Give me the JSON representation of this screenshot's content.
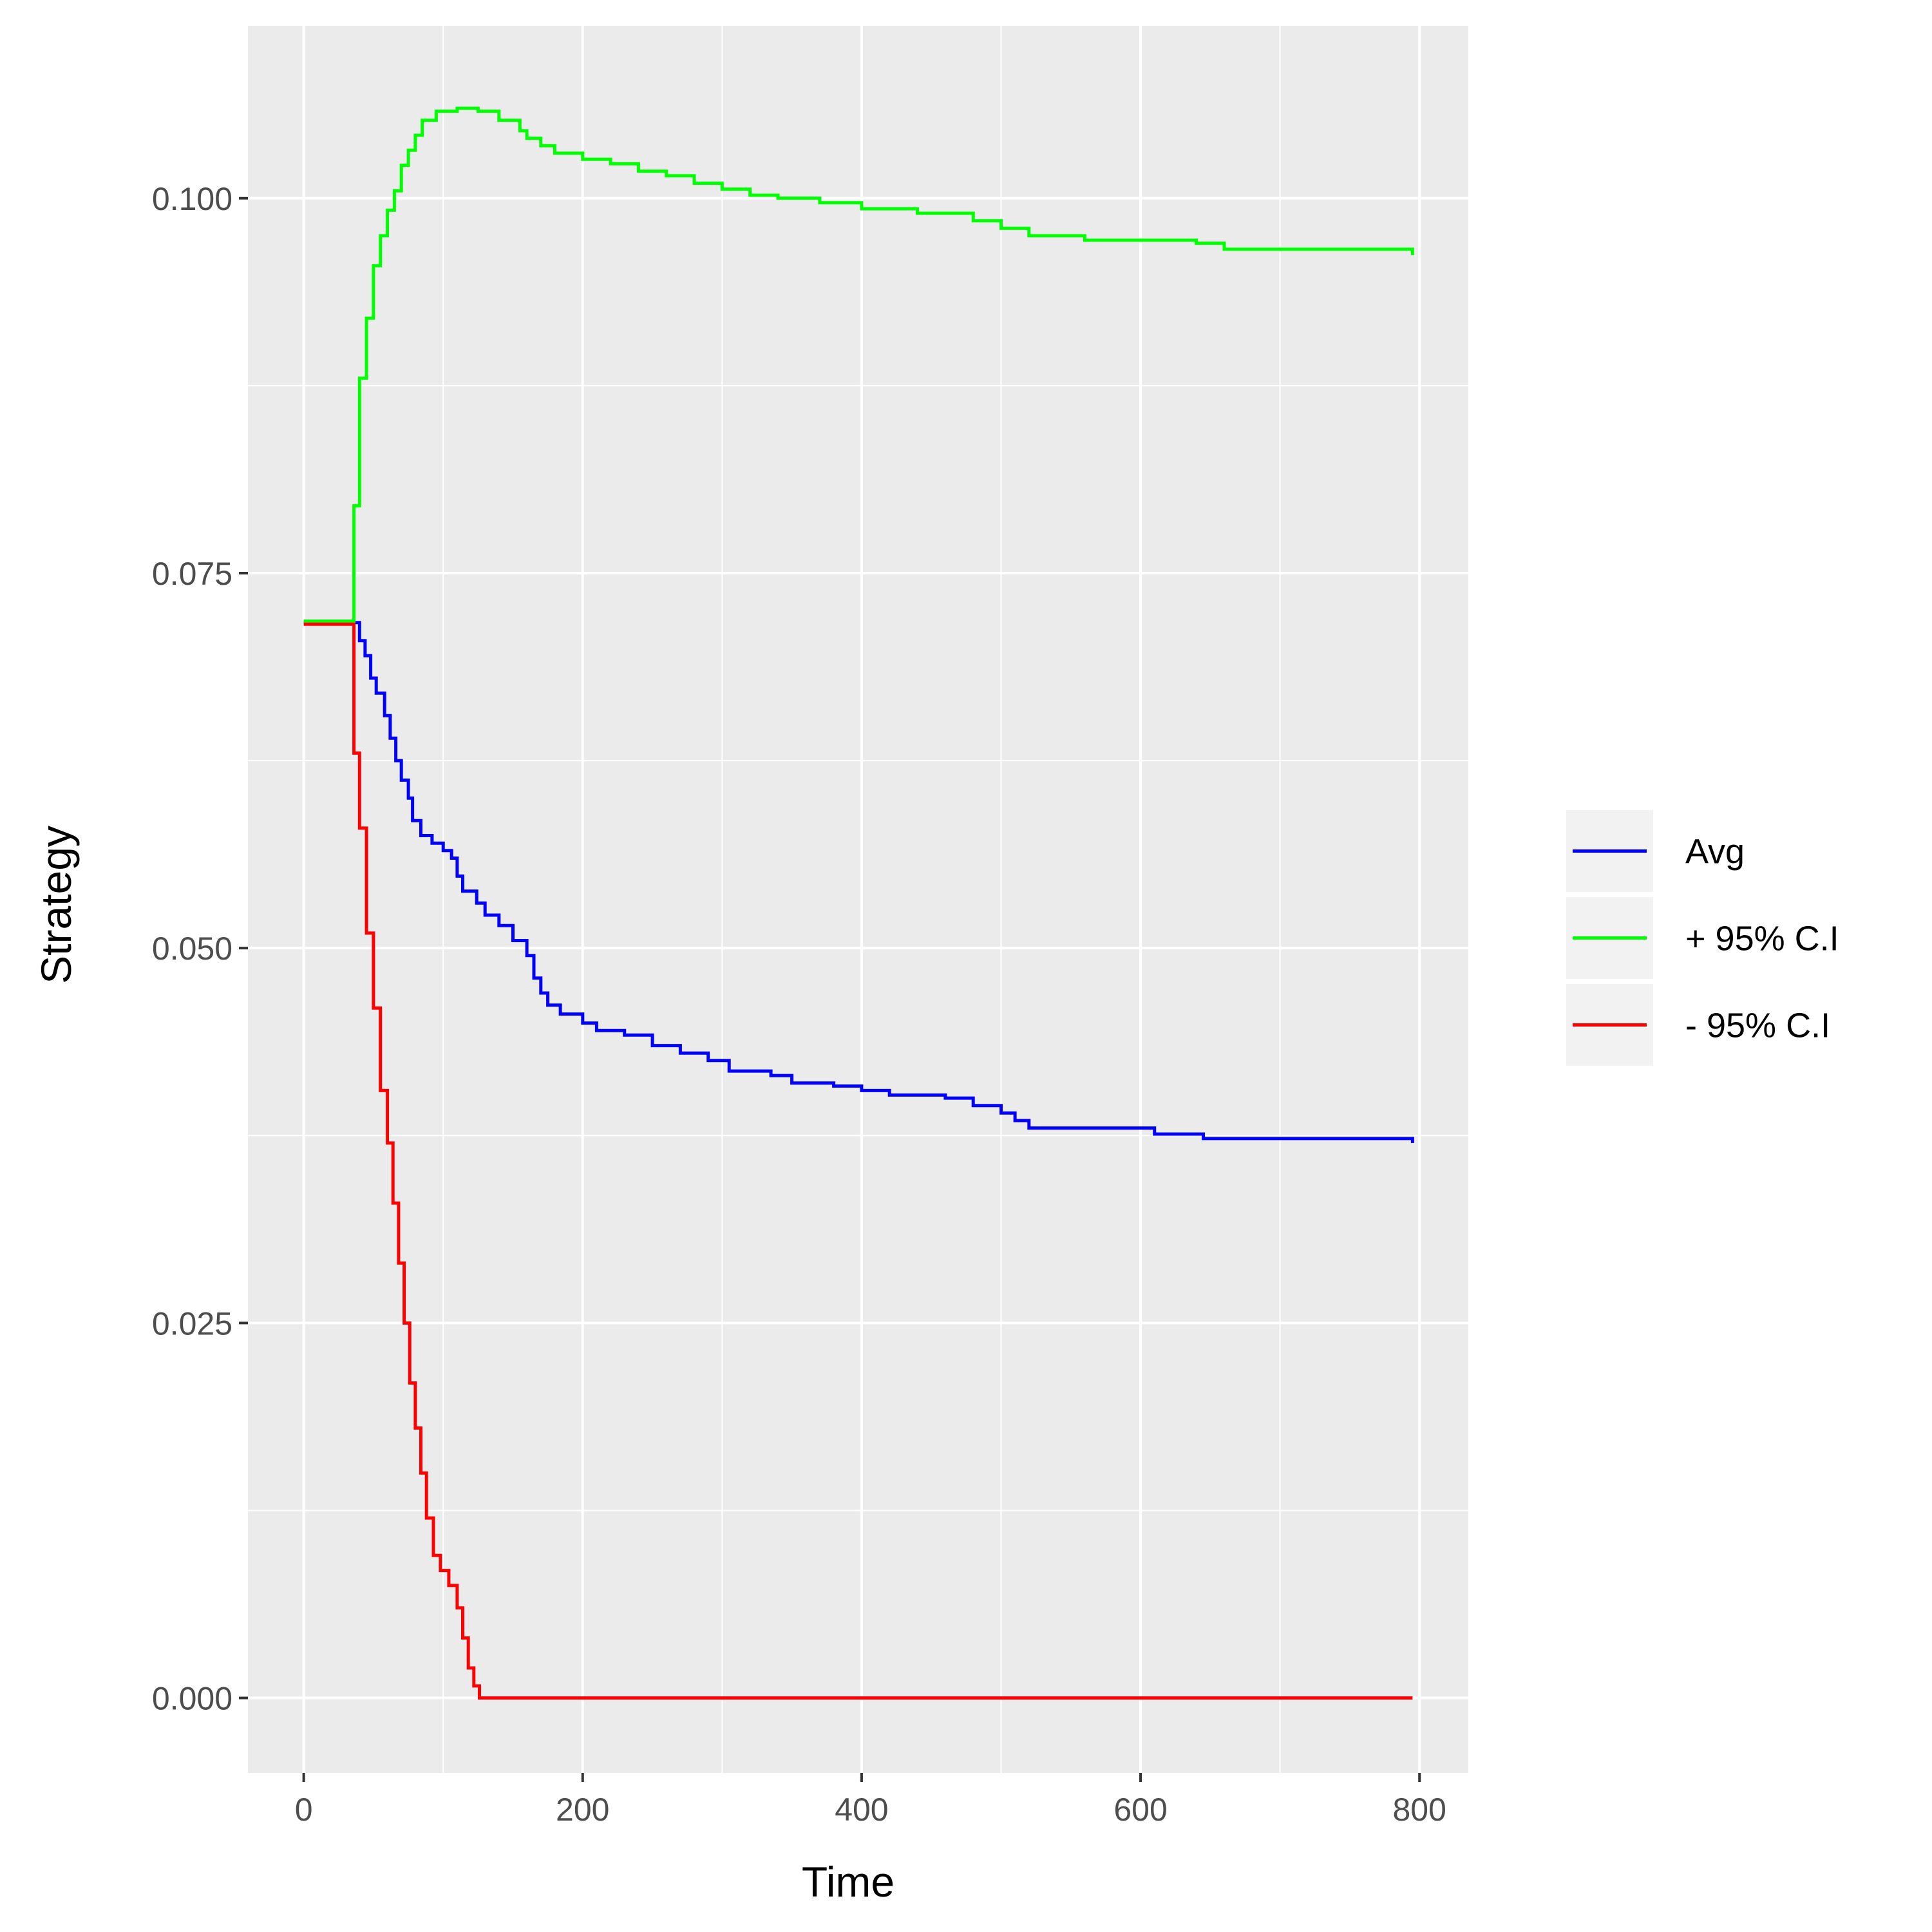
{
  "chart_data": {
    "type": "line",
    "xlabel": "Time",
    "ylabel": "Strategy",
    "xlim": [
      -40,
      835
    ],
    "ylim": [
      -0.005,
      0.1115
    ],
    "x_ticks": [
      0,
      200,
      400,
      600,
      800
    ],
    "x_tick_labels": [
      "0",
      "200",
      "400",
      "600",
      "800"
    ],
    "y_ticks": [
      0.0,
      0.025,
      0.05,
      0.075,
      0.1
    ],
    "y_tick_labels": [
      "0.000",
      "0.025",
      "0.050",
      "0.075",
      "0.100"
    ],
    "grid": true,
    "legend_position": "right",
    "series": [
      {
        "name": "Avg",
        "color": "#0000ff",
        "points": [
          [
            0,
            0.0717
          ],
          [
            34,
            0.0717
          ],
          [
            40,
            0.0705
          ],
          [
            44,
            0.0695
          ],
          [
            48,
            0.068
          ],
          [
            52,
            0.067
          ],
          [
            58,
            0.0655
          ],
          [
            62,
            0.064
          ],
          [
            66,
            0.0625
          ],
          [
            70,
            0.0612
          ],
          [
            75,
            0.06
          ],
          [
            78,
            0.0585
          ],
          [
            84,
            0.0575
          ],
          [
            92,
            0.057
          ],
          [
            100,
            0.0565
          ],
          [
            106,
            0.056
          ],
          [
            110,
            0.0548
          ],
          [
            114,
            0.0538
          ],
          [
            124,
            0.053
          ],
          [
            130,
            0.0522
          ],
          [
            140,
            0.0515
          ],
          [
            150,
            0.0505
          ],
          [
            160,
            0.0495
          ],
          [
            165,
            0.048
          ],
          [
            170,
            0.047
          ],
          [
            175,
            0.0462
          ],
          [
            184,
            0.0456
          ],
          [
            200,
            0.045
          ],
          [
            210,
            0.0445
          ],
          [
            230,
            0.0442
          ],
          [
            250,
            0.0435
          ],
          [
            270,
            0.043
          ],
          [
            290,
            0.0425
          ],
          [
            305,
            0.0418
          ],
          [
            335,
            0.0415
          ],
          [
            350,
            0.041
          ],
          [
            380,
            0.0408
          ],
          [
            400,
            0.0405
          ],
          [
            420,
            0.0402
          ],
          [
            460,
            0.04
          ],
          [
            480,
            0.0395
          ],
          [
            500,
            0.039
          ],
          [
            510,
            0.0385
          ],
          [
            520,
            0.038
          ],
          [
            580,
            0.038
          ],
          [
            610,
            0.0376
          ],
          [
            645,
            0.0373
          ],
          [
            700,
            0.0373
          ],
          [
            790,
            0.0373
          ],
          [
            795,
            0.037
          ]
        ]
      },
      {
        "name": "+ 95% C.I",
        "color": "#00ff00",
        "points": [
          [
            0,
            0.0718
          ],
          [
            34,
            0.0718
          ],
          [
            36,
            0.0795
          ],
          [
            40,
            0.088
          ],
          [
            45,
            0.092
          ],
          [
            50,
            0.0955
          ],
          [
            55,
            0.0975
          ],
          [
            60,
            0.0992
          ],
          [
            65,
            0.1005
          ],
          [
            70,
            0.1022
          ],
          [
            75,
            0.1032
          ],
          [
            80,
            0.1042
          ],
          [
            85,
            0.1052
          ],
          [
            95,
            0.1058
          ],
          [
            110,
            0.106
          ],
          [
            125,
            0.1058
          ],
          [
            140,
            0.1052
          ],
          [
            155,
            0.1045
          ],
          [
            160,
            0.104
          ],
          [
            170,
            0.1035
          ],
          [
            180,
            0.103
          ],
          [
            200,
            0.1026
          ],
          [
            220,
            0.1023
          ],
          [
            240,
            0.1018
          ],
          [
            260,
            0.1015
          ],
          [
            280,
            0.101
          ],
          [
            300,
            0.1006
          ],
          [
            320,
            0.1002
          ],
          [
            340,
            0.1
          ],
          [
            370,
            0.0997
          ],
          [
            400,
            0.0993
          ],
          [
            440,
            0.099
          ],
          [
            480,
            0.0985
          ],
          [
            500,
            0.098
          ],
          [
            520,
            0.0975
          ],
          [
            560,
            0.0972
          ],
          [
            600,
            0.0972
          ],
          [
            640,
            0.097
          ],
          [
            660,
            0.0966
          ],
          [
            700,
            0.0966
          ],
          [
            790,
            0.0966
          ],
          [
            795,
            0.0962
          ]
        ]
      },
      {
        "name": "- 95% C.I",
        "color": "#ff0000",
        "points": [
          [
            0,
            0.0716
          ],
          [
            34,
            0.0716
          ],
          [
            36,
            0.063
          ],
          [
            40,
            0.058
          ],
          [
            45,
            0.051
          ],
          [
            50,
            0.046
          ],
          [
            55,
            0.0405
          ],
          [
            60,
            0.037
          ],
          [
            64,
            0.033
          ],
          [
            68,
            0.029
          ],
          [
            72,
            0.025
          ],
          [
            76,
            0.021
          ],
          [
            80,
            0.018
          ],
          [
            84,
            0.015
          ],
          [
            88,
            0.012
          ],
          [
            93,
            0.0095
          ],
          [
            98,
            0.0085
          ],
          [
            104,
            0.0075
          ],
          [
            110,
            0.006
          ],
          [
            114,
            0.004
          ],
          [
            118,
            0.002
          ],
          [
            122,
            0.0008
          ],
          [
            126,
            0.0
          ],
          [
            400,
            0.0
          ],
          [
            795,
            0.0
          ]
        ]
      }
    ]
  }
}
